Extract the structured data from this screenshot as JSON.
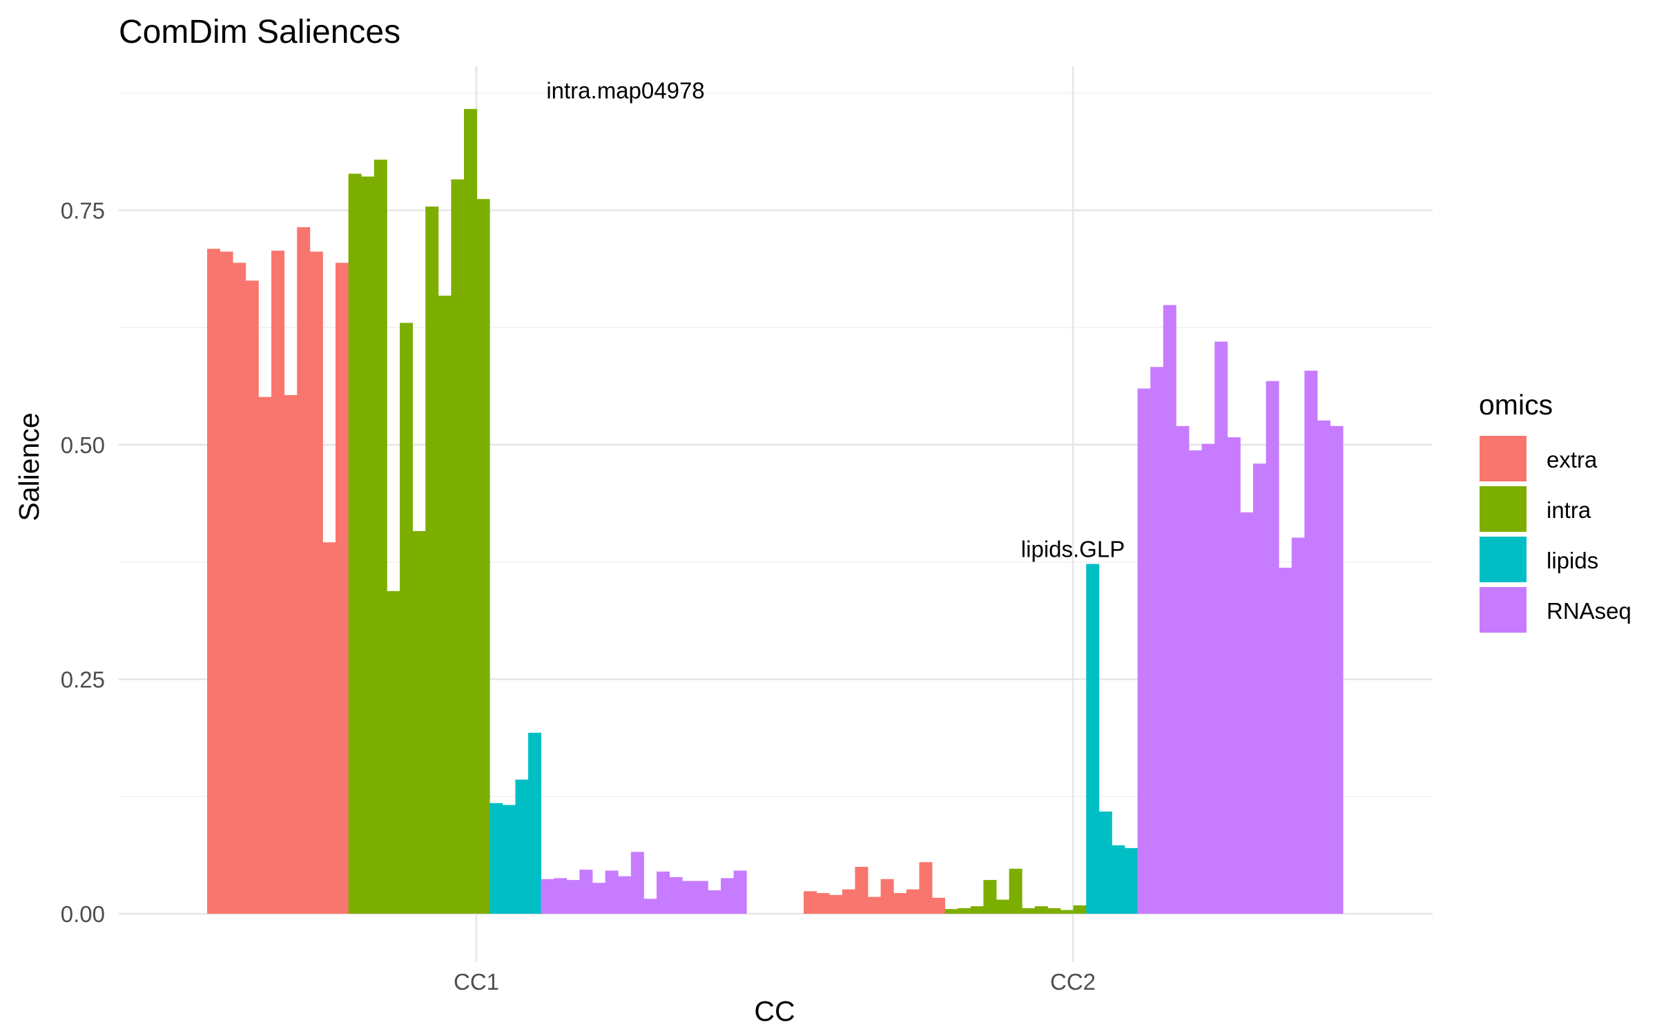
{
  "chart_data": {
    "type": "bar",
    "title": "ComDim Saliences",
    "xlabel": "CC",
    "ylabel": "Salience",
    "categories": [
      "CC1",
      "CC2"
    ],
    "ylim": [
      0,
      0.9
    ],
    "yticks": [
      "0.00",
      "0.25",
      "0.50",
      "0.75"
    ],
    "grid": true,
    "legend": {
      "title": "omics",
      "position": "right"
    },
    "series": [
      {
        "name": "extra",
        "color": "#F8766D",
        "values": {
          "CC1": [
            0.709,
            0.706,
            0.694,
            0.675,
            0.551,
            0.707,
            0.553,
            0.732,
            0.706,
            0.396,
            0.694
          ],
          "CC2": [
            0.024,
            0.022,
            0.02,
            0.026,
            0.05,
            0.018,
            0.037,
            0.022,
            0.026,
            0.055,
            0.017
          ]
        }
      },
      {
        "name": "intra",
        "color": "#7CAE00",
        "values": {
          "CC1": [
            0.789,
            0.786,
            0.804,
            0.344,
            0.63,
            0.408,
            0.754,
            0.659,
            0.783,
            0.858,
            0.762
          ],
          "CC2": [
            0.005,
            0.006,
            0.008,
            0.036,
            0.015,
            0.048,
            0.006,
            0.008,
            0.006,
            0.004,
            0.009
          ]
        }
      },
      {
        "name": "lipids",
        "color": "#00BFC4",
        "values": {
          "CC1": [
            0.118,
            0.116,
            0.143,
            0.193
          ],
          "CC2": [
            0.373,
            0.109,
            0.073,
            0.07
          ]
        }
      },
      {
        "name": "RNAseq",
        "color": "#C77CFF",
        "values": {
          "CC1": [
            0.037,
            0.038,
            0.036,
            0.047,
            0.033,
            0.046,
            0.04,
            0.066,
            0.016,
            0.045,
            0.039,
            0.035,
            0.035,
            0.025,
            0.038,
            0.046
          ],
          "CC2": [
            0.56,
            0.583,
            0.649,
            0.52,
            0.494,
            0.501,
            0.61,
            0.508,
            0.428,
            0.48,
            0.568,
            0.369,
            0.401,
            0.579,
            0.526,
            0.52
          ]
        }
      }
    ],
    "annotations": [
      {
        "text": "intra.map04978",
        "category": "CC1",
        "value": 0.878
      },
      {
        "text": "lipids.GLP",
        "category": "CC2",
        "value": 0.389
      }
    ]
  }
}
